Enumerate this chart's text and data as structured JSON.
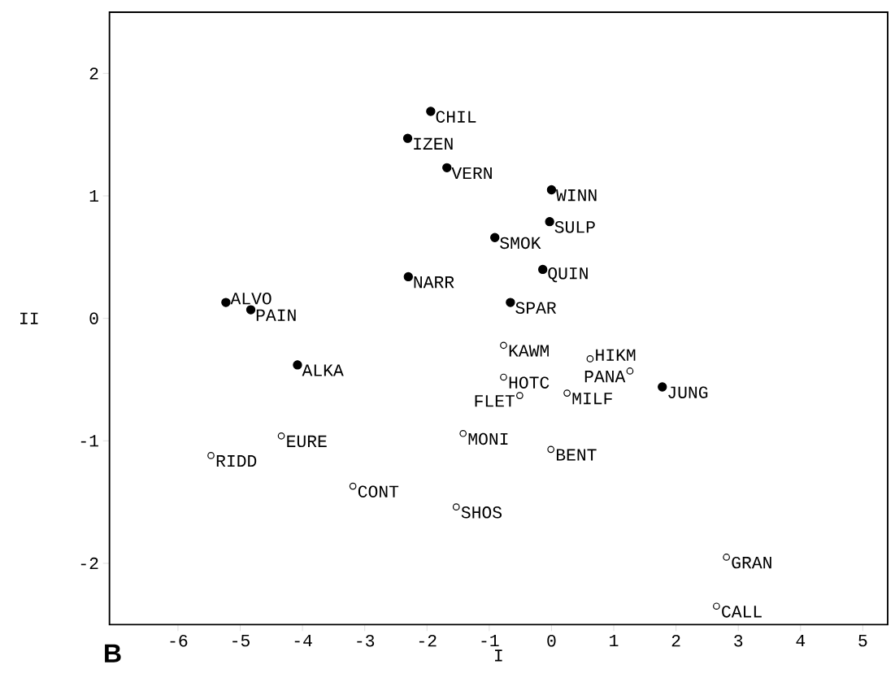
{
  "chart_data": {
    "type": "scatter",
    "xlabel": "I",
    "ylabel": "II",
    "grid": false,
    "xlim": [
      -7.1,
      5.4
    ],
    "ylim": [
      -2.5,
      2.5
    ],
    "xticks": [
      -6,
      -5,
      -4,
      -3,
      -2,
      -1,
      0,
      1,
      2,
      3,
      4,
      5
    ],
    "yticks": [
      -2,
      -1,
      0,
      1,
      2
    ],
    "series": [
      {
        "color": "#000000",
        "x": [
          -1.94,
          -2.31,
          -1.68,
          0.0,
          -0.03,
          -0.91,
          -0.14,
          -2.3,
          -0.66,
          -5.23,
          -4.83,
          -4.08,
          1.78
        ],
        "values": [
          1.69,
          1.47,
          1.23,
          1.05,
          0.79,
          0.66,
          0.4,
          0.34,
          0.13,
          0.13,
          0.07,
          -0.38,
          -0.56
        ]
      },
      {
        "color": "#000000",
        "x": [
          -0.77,
          0.62,
          1.26,
          -0.77,
          -0.51,
          0.25,
          -4.34,
          -5.47,
          -1.42,
          -0.01,
          -3.19,
          -1.53,
          2.81,
          2.65
        ],
        "values": [
          -0.22,
          -0.33,
          -0.43,
          -0.48,
          -0.63,
          -0.61,
          -0.96,
          -1.12,
          -0.94,
          -1.07,
          -1.37,
          -1.54,
          -1.95,
          -2.35
        ]
      }
    ],
    "annotations": [
      "B",
      {
        "text": "CHIL",
        "x": -1.94,
        "y": 1.69
      },
      {
        "text": "IZEN",
        "x": -2.31,
        "y": 1.47
      },
      {
        "text": "VERN",
        "x": -1.68,
        "y": 1.23
      },
      {
        "text": "WINN",
        "x": 0.0,
        "y": 1.05
      },
      {
        "text": "SULP",
        "x": -0.03,
        "y": 0.79
      },
      {
        "text": "SMOK",
        "x": -0.91,
        "y": 0.66
      },
      {
        "text": "QUIN",
        "x": -0.14,
        "y": 0.4
      },
      {
        "text": "NARR",
        "x": -2.3,
        "y": 0.34
      },
      {
        "text": "SPAR",
        "x": -0.66,
        "y": 0.13
      },
      {
        "text": "ALVO",
        "x": -5.23,
        "y": 0.13
      },
      {
        "text": "PAIN",
        "x": -4.83,
        "y": 0.07
      },
      {
        "text": "ALKA",
        "x": -4.08,
        "y": -0.38
      },
      {
        "text": "JUNG",
        "x": 1.78,
        "y": -0.56
      },
      {
        "text": "KAWM",
        "x": -0.77,
        "y": -0.22
      },
      {
        "text": "HIKM",
        "x": 0.62,
        "y": -0.33
      },
      {
        "text": "PANA",
        "x": 1.26,
        "y": -0.43
      },
      {
        "text": "HOTC",
        "x": -0.77,
        "y": -0.48
      },
      {
        "text": "FLET",
        "x": -0.51,
        "y": -0.63
      },
      {
        "text": "MILF",
        "x": 0.25,
        "y": -0.61
      },
      {
        "text": "EURE",
        "x": -4.34,
        "y": -0.96
      },
      {
        "text": "RIDD",
        "x": -5.47,
        "y": -1.12
      },
      {
        "text": "MONI",
        "x": -1.42,
        "y": -0.94
      },
      {
        "text": "BENT",
        "x": -0.01,
        "y": -1.07
      },
      {
        "text": "CONT",
        "x": -3.19,
        "y": -1.37
      },
      {
        "text": "SHOS",
        "x": -1.53,
        "y": -1.54
      },
      {
        "text": "GRAN",
        "x": 2.81,
        "y": -1.95
      },
      {
        "text": "CALL",
        "x": 2.65,
        "y": -2.35
      }
    ]
  }
}
